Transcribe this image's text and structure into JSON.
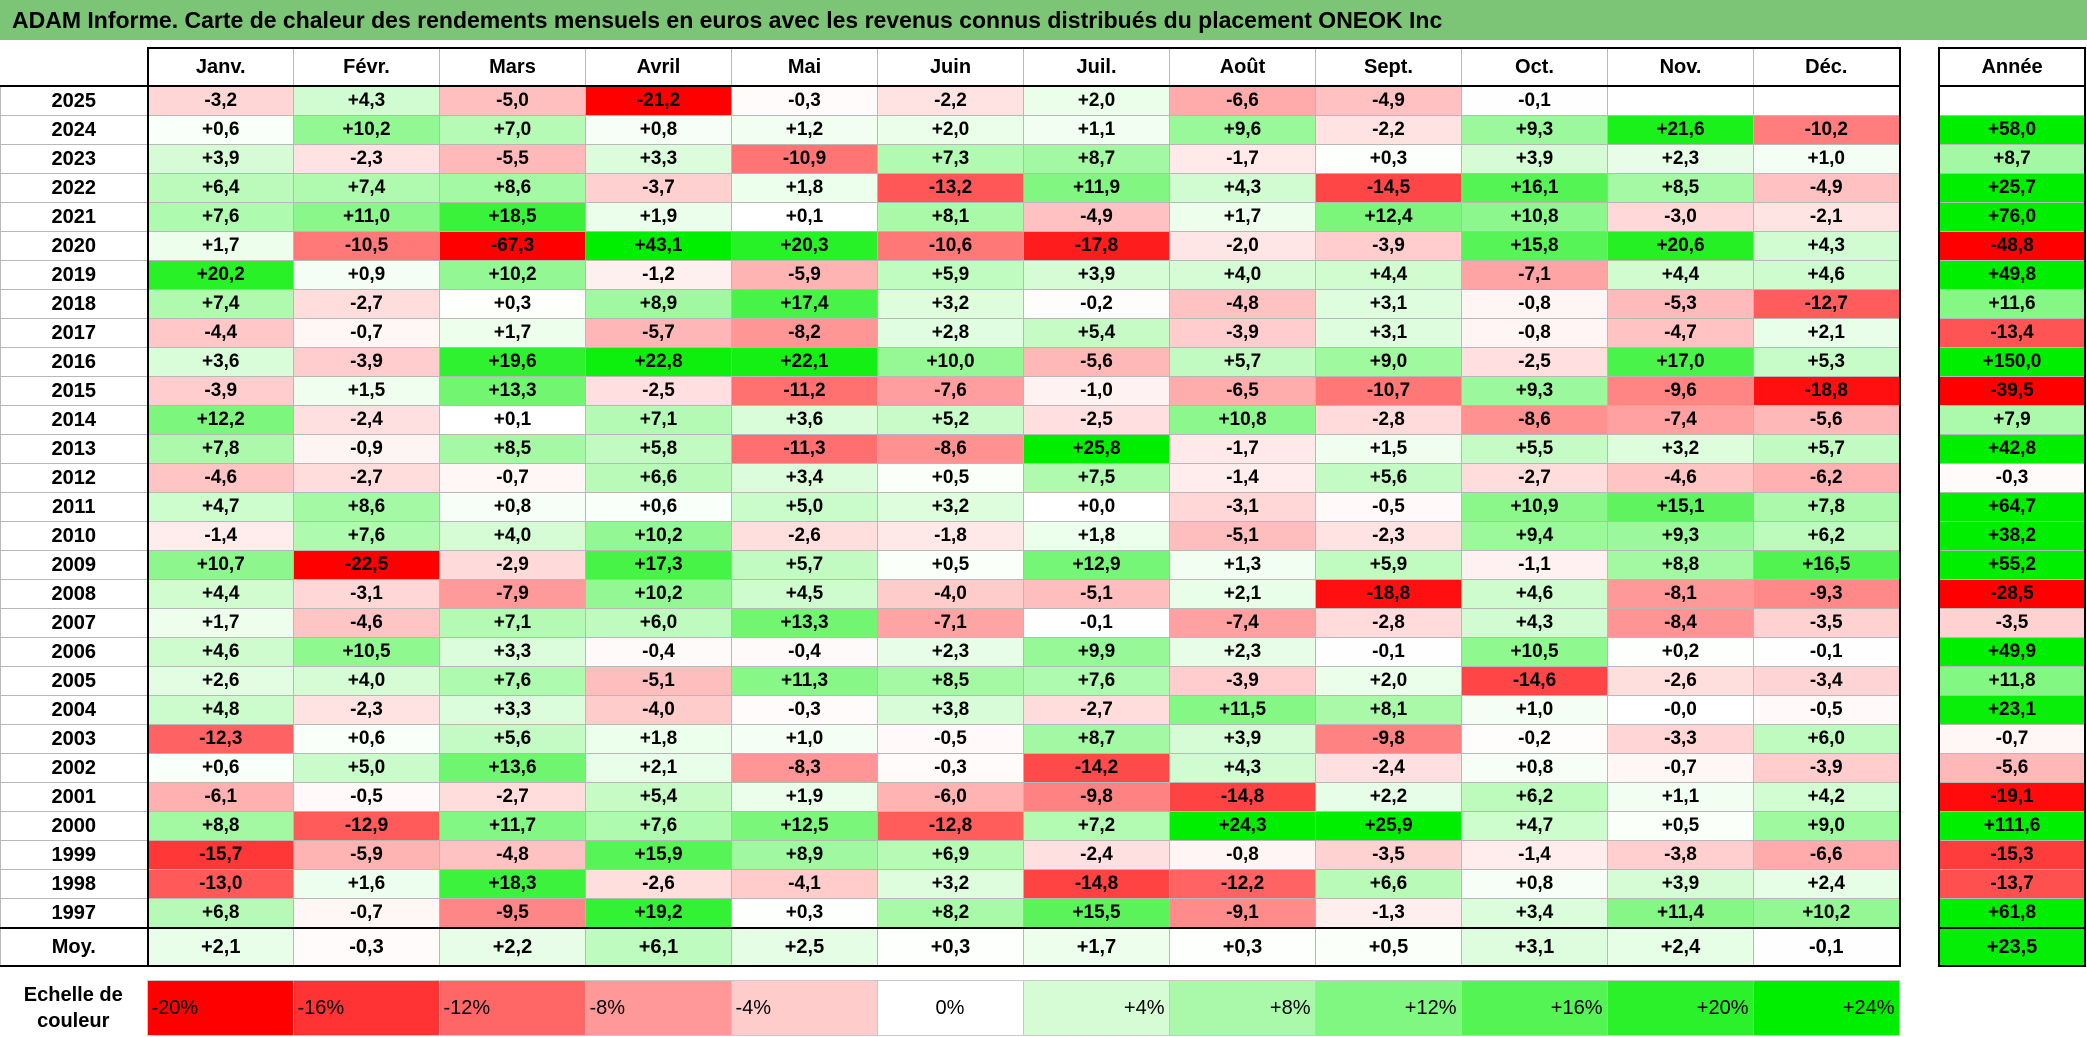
{
  "title": "ADAM Informe. Carte de chaleur des rendements mensuels en euros avec les revenus connus distribués du placement ONEOK Inc",
  "chart_data": {
    "type": "heatmap",
    "columns": [
      "Janv.",
      "Févr.",
      "Mars",
      "Avril",
      "Mai",
      "Juin",
      "Juil.",
      "Août",
      "Sept.",
      "Oct.",
      "Nov.",
      "Déc."
    ],
    "year_column": "Année",
    "rows": [
      {
        "year": "2025",
        "values": [
          "-3,2",
          "+4,3",
          "-5,0",
          "-21,2",
          "-0,3",
          "-2,2",
          "+2,0",
          "-6,6",
          "-4,9",
          "-0,1",
          "",
          ""
        ],
        "annual": ""
      },
      {
        "year": "2024",
        "values": [
          "+0,6",
          "+10,2",
          "+7,0",
          "+0,8",
          "+1,2",
          "+2,0",
          "+1,1",
          "+9,6",
          "-2,2",
          "+9,3",
          "+21,6",
          "-10,2"
        ],
        "annual": "+58,0"
      },
      {
        "year": "2023",
        "values": [
          "+3,9",
          "-2,3",
          "-5,5",
          "+3,3",
          "-10,9",
          "+7,3",
          "+8,7",
          "-1,7",
          "+0,3",
          "+3,9",
          "+2,3",
          "+1,0"
        ],
        "annual": "+8,7"
      },
      {
        "year": "2022",
        "values": [
          "+6,4",
          "+7,4",
          "+8,6",
          "-3,7",
          "+1,8",
          "-13,2",
          "+11,9",
          "+4,3",
          "-14,5",
          "+16,1",
          "+8,5",
          "-4,9"
        ],
        "annual": "+25,7"
      },
      {
        "year": "2021",
        "values": [
          "+7,6",
          "+11,0",
          "+18,5",
          "+1,9",
          "+0,1",
          "+8,1",
          "-4,9",
          "+1,7",
          "+12,4",
          "+10,8",
          "-3,0",
          "-2,1"
        ],
        "annual": "+76,0"
      },
      {
        "year": "2020",
        "values": [
          "+1,7",
          "-10,5",
          "-67,3",
          "+43,1",
          "+20,3",
          "-10,6",
          "-17,8",
          "-2,0",
          "-3,9",
          "+15,8",
          "+20,6",
          "+4,3"
        ],
        "annual": "-48,8"
      },
      {
        "year": "2019",
        "values": [
          "+20,2",
          "+0,9",
          "+10,2",
          "-1,2",
          "-5,9",
          "+5,9",
          "+3,9",
          "+4,0",
          "+4,4",
          "-7,1",
          "+4,4",
          "+4,6"
        ],
        "annual": "+49,8"
      },
      {
        "year": "2018",
        "values": [
          "+7,4",
          "-2,7",
          "+0,3",
          "+8,9",
          "+17,4",
          "+3,2",
          "-0,2",
          "-4,8",
          "+3,1",
          "-0,8",
          "-5,3",
          "-12,7"
        ],
        "annual": "+11,6"
      },
      {
        "year": "2017",
        "values": [
          "-4,4",
          "-0,7",
          "+1,7",
          "-5,7",
          "-8,2",
          "+2,8",
          "+5,4",
          "-3,9",
          "+3,1",
          "-0,8",
          "-4,7",
          "+2,1"
        ],
        "annual": "-13,4"
      },
      {
        "year": "2016",
        "values": [
          "+3,6",
          "-3,9",
          "+19,6",
          "+22,8",
          "+22,1",
          "+10,0",
          "-5,6",
          "+5,7",
          "+9,0",
          "-2,5",
          "+17,0",
          "+5,3"
        ],
        "annual": "+150,0"
      },
      {
        "year": "2015",
        "values": [
          "-3,9",
          "+1,5",
          "+13,3",
          "-2,5",
          "-11,2",
          "-7,6",
          "-1,0",
          "-6,5",
          "-10,7",
          "+9,3",
          "-9,6",
          "-18,8"
        ],
        "annual": "-39,5"
      },
      {
        "year": "2014",
        "values": [
          "+12,2",
          "-2,4",
          "+0,1",
          "+7,1",
          "+3,6",
          "+5,2",
          "-2,5",
          "+10,8",
          "-2,8",
          "-8,6",
          "-7,4",
          "-5,6"
        ],
        "annual": "+7,9"
      },
      {
        "year": "2013",
        "values": [
          "+7,8",
          "-0,9",
          "+8,5",
          "+5,8",
          "-11,3",
          "-8,6",
          "+25,8",
          "-1,7",
          "+1,5",
          "+5,5",
          "+3,2",
          "+5,7"
        ],
        "annual": "+42,8"
      },
      {
        "year": "2012",
        "values": [
          "-4,6",
          "-2,7",
          "-0,7",
          "+6,6",
          "+3,4",
          "+0,5",
          "+7,5",
          "-1,4",
          "+5,6",
          "-2,7",
          "-4,6",
          "-6,2"
        ],
        "annual": "-0,3"
      },
      {
        "year": "2011",
        "values": [
          "+4,7",
          "+8,6",
          "+0,8",
          "+0,6",
          "+5,0",
          "+3,2",
          "+0,0",
          "-3,1",
          "-0,5",
          "+10,9",
          "+15,1",
          "+7,8"
        ],
        "annual": "+64,7"
      },
      {
        "year": "2010",
        "values": [
          "-1,4",
          "+7,6",
          "+4,0",
          "+10,2",
          "-2,6",
          "-1,8",
          "+1,8",
          "-5,1",
          "-2,3",
          "+9,4",
          "+9,3",
          "+6,2"
        ],
        "annual": "+38,2"
      },
      {
        "year": "2009",
        "values": [
          "+10,7",
          "-22,5",
          "-2,9",
          "+17,3",
          "+5,7",
          "+0,5",
          "+12,9",
          "+1,3",
          "+5,9",
          "-1,1",
          "+8,8",
          "+16,5"
        ],
        "annual": "+55,2"
      },
      {
        "year": "2008",
        "values": [
          "+4,4",
          "-3,1",
          "-7,9",
          "+10,2",
          "+4,5",
          "-4,0",
          "-5,1",
          "+2,1",
          "-18,8",
          "+4,6",
          "-8,1",
          "-9,3"
        ],
        "annual": "-28,5"
      },
      {
        "year": "2007",
        "values": [
          "+1,7",
          "-4,6",
          "+7,1",
          "+6,0",
          "+13,3",
          "-7,1",
          "-0,1",
          "-7,4",
          "-2,8",
          "+4,3",
          "-8,4",
          "-3,5"
        ],
        "annual": "-3,5"
      },
      {
        "year": "2006",
        "values": [
          "+4,6",
          "+10,5",
          "+3,3",
          "-0,4",
          "-0,4",
          "+2,3",
          "+9,9",
          "+2,3",
          "-0,1",
          "+10,5",
          "+0,2",
          "-0,1"
        ],
        "annual": "+49,9"
      },
      {
        "year": "2005",
        "values": [
          "+2,6",
          "+4,0",
          "+7,6",
          "-5,1",
          "+11,3",
          "+8,5",
          "+7,6",
          "-3,9",
          "+2,0",
          "-14,6",
          "-2,6",
          "-3,4"
        ],
        "annual": "+11,8"
      },
      {
        "year": "2004",
        "values": [
          "+4,8",
          "-2,3",
          "+3,3",
          "-4,0",
          "-0,3",
          "+3,8",
          "-2,7",
          "+11,5",
          "+8,1",
          "+1,0",
          "-0,0",
          "-0,5"
        ],
        "annual": "+23,1"
      },
      {
        "year": "2003",
        "values": [
          "-12,3",
          "+0,6",
          "+5,6",
          "+1,8",
          "+1,0",
          "-0,5",
          "+8,7",
          "+3,9",
          "-9,8",
          "-0,2",
          "-3,3",
          "+6,0"
        ],
        "annual": "-0,7"
      },
      {
        "year": "2002",
        "values": [
          "+0,6",
          "+5,0",
          "+13,6",
          "+2,1",
          "-8,3",
          "-0,3",
          "-14,2",
          "+4,3",
          "-2,4",
          "+0,8",
          "-0,7",
          "-3,9"
        ],
        "annual": "-5,6"
      },
      {
        "year": "2001",
        "values": [
          "-6,1",
          "-0,5",
          "-2,7",
          "+5,4",
          "+1,9",
          "-6,0",
          "-9,8",
          "-14,8",
          "+2,2",
          "+6,2",
          "+1,1",
          "+4,2"
        ],
        "annual": "-19,1"
      },
      {
        "year": "2000",
        "values": [
          "+8,8",
          "-12,9",
          "+11,7",
          "+7,6",
          "+12,5",
          "-12,8",
          "+7,2",
          "+24,3",
          "+25,9",
          "+4,7",
          "+0,5",
          "+9,0"
        ],
        "annual": "+111,6"
      },
      {
        "year": "1999",
        "values": [
          "-15,7",
          "-5,9",
          "-4,8",
          "+15,9",
          "+8,9",
          "+6,9",
          "-2,4",
          "-0,8",
          "-3,5",
          "-1,4",
          "-3,8",
          "-6,6"
        ],
        "annual": "-15,3"
      },
      {
        "year": "1998",
        "values": [
          "-13,0",
          "+1,6",
          "+18,3",
          "-2,6",
          "-4,1",
          "+3,2",
          "-14,8",
          "-12,2",
          "+6,6",
          "+0,8",
          "+3,9",
          "+2,4"
        ],
        "annual": "-13,7"
      },
      {
        "year": "1997",
        "values": [
          "+6,8",
          "-0,7",
          "-9,5",
          "+19,2",
          "+0,3",
          "+8,2",
          "+15,5",
          "-9,1",
          "-1,3",
          "+3,4",
          "+11,4",
          "+10,2"
        ],
        "annual": "+61,8"
      }
    ],
    "average": {
      "label": "Moy.",
      "values": [
        "+2,1",
        "-0,3",
        "+2,2",
        "+6,1",
        "+2,5",
        "+0,3",
        "+1,7",
        "+0,3",
        "+0,5",
        "+3,1",
        "+2,4",
        "-0,1"
      ],
      "annual": "+23,5"
    },
    "scale": {
      "label_line1": "Echelle de",
      "label_line2": "couleur",
      "stops": [
        "-20%",
        "-16%",
        "-12%",
        "-8%",
        "-4%",
        "0%",
        "+4%",
        "+8%",
        "+12%",
        "+16%",
        "+20%",
        "+24%"
      ],
      "stop_values": [
        -20,
        -16,
        -12,
        -8,
        -4,
        0,
        4,
        8,
        12,
        16,
        20,
        24
      ]
    },
    "colors": {
      "title_bar": "#7cc576",
      "negative_max": "#ff0000",
      "zero": "#ffffff",
      "positive_max": "#00ee00"
    }
  }
}
